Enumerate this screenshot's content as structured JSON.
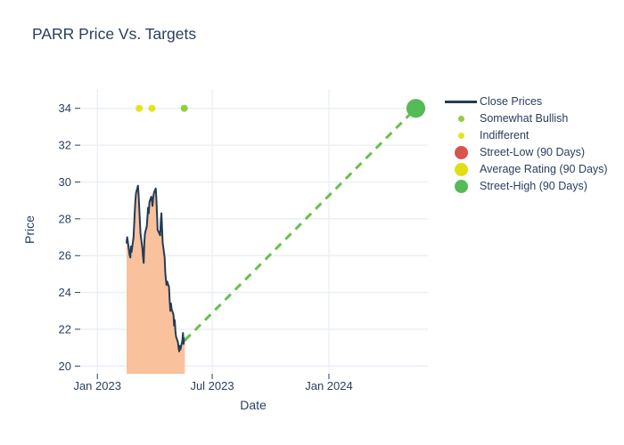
{
  "title": "PARR Price Vs. Targets",
  "colors": {
    "text": "#2a3f5f",
    "grid": "#e9eef6",
    "close_line": "#243b55",
    "area_fill": "#f9c29c",
    "trend_dash": "#68c04c",
    "street_low": "#d9534f",
    "average_rating": "#e2de14",
    "street_high": "#54bb57",
    "somewhat_bullish": "#8ed13c",
    "indifferent": "#e5e41c"
  },
  "legend": {
    "items": [
      {
        "label": "Close Prices",
        "marker": "line",
        "color": "#243b55"
      },
      {
        "label": "Somewhat Bullish",
        "marker": "dot",
        "color": "#8ed13c"
      },
      {
        "label": "Indifferent",
        "marker": "dot",
        "color": "#e5e41c"
      },
      {
        "label": "Street-Low (90 Days)",
        "marker": "bubble",
        "color": "#d9534f"
      },
      {
        "label": "Average Rating (90 Days)",
        "marker": "bubble",
        "color": "#e2de14"
      },
      {
        "label": "Street-High (90 Days)",
        "marker": "bubble",
        "color": "#54bb57"
      }
    ]
  },
  "chart_data": {
    "type": "line",
    "title": "PARR Price Vs. Targets",
    "xlabel": "Date",
    "ylabel": "Price",
    "grid": true,
    "legend_position": "right",
    "x_range": [
      "2022-12-05",
      "2024-06-05"
    ],
    "y_range": [
      19.58,
      35.05
    ],
    "y_ticks": [
      20,
      22,
      24,
      26,
      28,
      30,
      32,
      34
    ],
    "x_ticks": [
      {
        "date": "2023-01-01",
        "label": "Jan 2023"
      },
      {
        "date": "2023-07-01",
        "label": "Jul 2023"
      },
      {
        "date": "2024-01-01",
        "label": "Jan 2024"
      }
    ],
    "close_prices": [
      [
        "2023-02-16",
        26.7
      ],
      [
        "2023-02-17",
        27.0
      ],
      [
        "2023-02-21",
        26.0
      ],
      [
        "2023-02-22",
        25.9
      ],
      [
        "2023-02-23",
        26.5
      ],
      [
        "2023-02-24",
        26.2
      ],
      [
        "2023-02-27",
        27.0
      ],
      [
        "2023-02-28",
        27.7
      ],
      [
        "2023-03-01",
        28.4
      ],
      [
        "2023-03-02",
        29.0
      ],
      [
        "2023-03-03",
        29.4
      ],
      [
        "2023-03-06",
        29.8
      ],
      [
        "2023-03-07",
        29.3
      ],
      [
        "2023-03-08",
        28.6
      ],
      [
        "2023-03-09",
        27.9
      ],
      [
        "2023-03-10",
        27.2
      ],
      [
        "2023-03-13",
        26.4
      ],
      [
        "2023-03-14",
        25.9
      ],
      [
        "2023-03-15",
        25.6
      ],
      [
        "2023-03-16",
        26.7
      ],
      [
        "2023-03-17",
        27.2
      ],
      [
        "2023-03-20",
        27.6
      ],
      [
        "2023-03-21",
        28.1
      ],
      [
        "2023-03-22",
        28.6
      ],
      [
        "2023-03-23",
        28.3
      ],
      [
        "2023-03-24",
        28.9
      ],
      [
        "2023-03-27",
        29.2
      ],
      [
        "2023-03-28",
        29.0
      ],
      [
        "2023-03-29",
        28.7
      ],
      [
        "2023-03-30",
        29.1
      ],
      [
        "2023-03-31",
        29.4
      ],
      [
        "2023-04-03",
        29.65
      ],
      [
        "2023-04-04",
        29.1
      ],
      [
        "2023-04-05",
        28.3
      ],
      [
        "2023-04-06",
        27.4
      ],
      [
        "2023-04-10",
        27.1
      ],
      [
        "2023-04-11",
        27.9
      ],
      [
        "2023-04-12",
        28.3
      ],
      [
        "2023-04-13",
        27.5
      ],
      [
        "2023-04-14",
        26.7
      ],
      [
        "2023-04-17",
        25.9
      ],
      [
        "2023-04-18",
        25.1
      ],
      [
        "2023-04-19",
        24.7
      ],
      [
        "2023-04-20",
        24.4
      ],
      [
        "2023-04-21",
        24.6
      ],
      [
        "2023-04-24",
        24.3
      ],
      [
        "2023-04-25",
        23.6
      ],
      [
        "2023-04-26",
        23.0
      ],
      [
        "2023-04-27",
        23.4
      ],
      [
        "2023-04-28",
        23.1
      ],
      [
        "2023-05-01",
        22.8
      ],
      [
        "2023-05-02",
        22.2
      ],
      [
        "2023-05-03",
        22.5
      ],
      [
        "2023-05-04",
        21.9
      ],
      [
        "2023-05-05",
        21.6
      ],
      [
        "2023-05-08",
        21.3
      ],
      [
        "2023-05-09",
        21.0
      ],
      [
        "2023-05-10",
        20.8
      ],
      [
        "2023-05-11",
        21.1
      ],
      [
        "2023-05-12",
        20.9
      ],
      [
        "2023-05-15",
        21.4
      ],
      [
        "2023-05-16",
        21.8
      ],
      [
        "2023-05-17",
        21.2
      ],
      [
        "2023-05-18",
        21.5
      ],
      [
        "2023-05-19",
        21.4
      ]
    ],
    "ratings": [
      {
        "date": "2023-03-08",
        "value": 34,
        "rating": "Indifferent"
      },
      {
        "date": "2023-03-28",
        "value": 34,
        "rating": "Indifferent"
      },
      {
        "date": "2023-05-18",
        "value": 34,
        "rating": "Somewhat Bullish"
      }
    ],
    "trend_line": {
      "from": [
        "2023-05-19",
        21.4
      ],
      "to": [
        "2024-05-17",
        34
      ]
    },
    "targets": [
      {
        "label": "Street-Low (90 Days)",
        "date": "2024-05-17",
        "value": 34,
        "color": "#d9534f"
      },
      {
        "label": "Average Rating (90 Days)",
        "date": "2024-05-17",
        "value": 34,
        "color": "#e2de14"
      },
      {
        "label": "Street-High (90 Days)",
        "date": "2024-05-17",
        "value": 34,
        "color": "#54bb57"
      }
    ]
  }
}
